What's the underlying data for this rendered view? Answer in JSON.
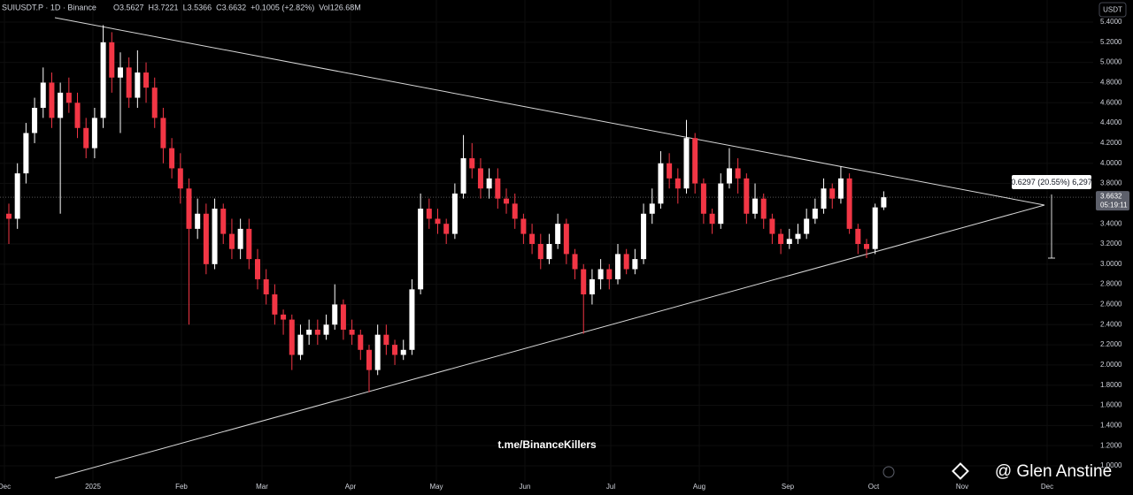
{
  "chart_data": {
    "type": "candlestick",
    "symbol": "SUIUSDT.P · 1D · Binance",
    "header_values": [
      "O3.5627",
      "H3.7221",
      "L3.5366",
      "C3.6632",
      "+0.1005 (+2.82%)",
      "Vol126.68M"
    ],
    "currency": "USDT",
    "last_price": {
      "value": 3.6632,
      "label": "3.6632"
    },
    "countdown": "05:19:11",
    "measure_label": "0.6297 (20.55%) 6,297",
    "watermark": "t.me/BinanceKillers",
    "author": "@ Glen Anstine",
    "xticks": [
      "Dec",
      "2025",
      "Feb",
      "Mar",
      "Apr",
      "May",
      "Jun",
      "Jul",
      "Aug",
      "Sep",
      "Oct",
      "Nov",
      "Dec"
    ],
    "ylim": [
      1.0,
      5.4
    ],
    "yticks": [
      {
        "value": 1.0,
        "label": "1.0000"
      },
      {
        "value": 1.2,
        "label": "1.2000"
      },
      {
        "value": 1.4,
        "label": "1.4000"
      },
      {
        "value": 1.6,
        "label": "1.6000"
      },
      {
        "value": 1.8,
        "label": "1.8000"
      },
      {
        "value": 2.0,
        "label": "2.0000"
      },
      {
        "value": 2.2,
        "label": "2.2000"
      },
      {
        "value": 2.4,
        "label": "2.4000"
      },
      {
        "value": 2.6,
        "label": "2.6000"
      },
      {
        "value": 2.8,
        "label": "2.8000"
      },
      {
        "value": 3.0,
        "label": "3.0000"
      },
      {
        "value": 3.2,
        "label": "3.2000"
      },
      {
        "value": 3.4,
        "label": "3.4000"
      },
      {
        "value": 3.8,
        "label": "3.8000"
      },
      {
        "value": 4.0,
        "label": "4.0000"
      },
      {
        "value": 4.2,
        "label": "4.2000"
      },
      {
        "value": 4.4,
        "label": "4.4000"
      },
      {
        "value": 4.6,
        "label": "4.6000"
      },
      {
        "value": 4.8,
        "label": "4.8000"
      },
      {
        "value": 5.0,
        "label": "5.0000"
      },
      {
        "value": 5.2,
        "label": "5.2000"
      },
      {
        "value": 5.4,
        "label": "5.4000"
      }
    ],
    "up_color": "#ffffff",
    "down_color": "#f23645",
    "open": [
      3.5,
      3.45,
      3.9,
      4.3,
      4.55,
      4.8,
      4.45,
      4.7,
      4.6,
      4.35,
      4.15,
      4.45,
      5.2,
      4.85,
      4.95,
      4.65,
      4.9,
      4.75,
      4.45,
      4.15,
      3.95,
      3.75,
      3.35,
      3.5,
      3.0,
      3.55,
      3.3,
      3.15,
      3.35,
      3.05,
      2.85,
      2.7,
      2.5,
      2.45,
      2.1,
      2.3,
      2.35,
      2.3,
      2.4,
      2.6,
      2.35,
      2.3,
      2.15,
      1.95,
      2.3,
      2.2,
      2.1,
      2.15,
      2.75,
      3.55,
      3.45,
      3.4,
      3.3,
      3.7,
      4.05,
      3.95,
      3.75,
      3.85,
      3.65,
      3.6,
      3.45,
      3.3,
      3.2,
      3.05,
      3.2,
      3.4,
      3.1,
      2.95,
      2.7,
      2.85,
      2.95,
      2.85,
      3.1,
      2.95,
      3.05,
      3.5,
      3.6,
      4.0,
      3.85,
      3.75,
      4.25,
      3.8,
      3.5,
      3.4,
      3.8,
      3.95,
      3.85,
      3.5,
      3.65,
      3.45,
      3.3,
      3.2,
      3.25,
      3.3,
      3.45,
      3.55,
      3.75,
      3.65,
      3.85,
      3.35,
      3.2,
      3.15,
      3.5627
    ],
    "high": [
      3.6,
      4.0,
      4.4,
      4.65,
      4.95,
      4.9,
      4.8,
      4.85,
      4.7,
      4.45,
      4.55,
      5.37,
      5.3,
      5.1,
      5.05,
      5.12,
      5.0,
      4.85,
      4.55,
      4.25,
      4.1,
      3.85,
      3.65,
      3.6,
      3.65,
      3.6,
      3.45,
      3.45,
      3.45,
      3.15,
      2.95,
      2.8,
      2.55,
      2.5,
      2.4,
      2.45,
      2.45,
      2.5,
      2.8,
      2.65,
      2.45,
      2.35,
      2.2,
      2.4,
      2.4,
      2.25,
      2.25,
      2.85,
      3.7,
      3.65,
      3.55,
      3.45,
      3.8,
      4.28,
      4.2,
      4.05,
      3.95,
      3.95,
      3.75,
      3.7,
      3.5,
      3.4,
      3.3,
      3.3,
      3.5,
      3.45,
      3.15,
      3.0,
      2.95,
      3.05,
      3.0,
      3.2,
      3.15,
      3.15,
      3.6,
      3.75,
      4.12,
      4.1,
      3.95,
      4.43,
      4.3,
      3.85,
      3.55,
      3.9,
      4.15,
      4.05,
      3.9,
      3.8,
      3.7,
      3.5,
      3.35,
      3.35,
      3.4,
      3.55,
      3.65,
      3.85,
      3.8,
      3.97,
      3.9,
      3.4,
      3.25,
      3.6,
      3.7221
    ],
    "low": [
      3.2,
      3.35,
      3.8,
      4.2,
      4.45,
      4.35,
      3.5,
      4.5,
      4.25,
      4.05,
      4.05,
      4.35,
      4.7,
      4.3,
      4.55,
      4.55,
      4.6,
      4.35,
      4.0,
      3.85,
      3.6,
      2.4,
      3.25,
      2.9,
      2.95,
      3.2,
      3.05,
      3.05,
      2.95,
      2.75,
      2.6,
      2.4,
      2.3,
      1.95,
      2.05,
      2.2,
      2.2,
      2.25,
      2.35,
      2.25,
      2.2,
      2.05,
      1.73,
      1.9,
      2.1,
      2.0,
      2.05,
      2.1,
      2.7,
      3.35,
      3.3,
      3.2,
      3.25,
      3.65,
      3.85,
      3.65,
      3.65,
      3.55,
      3.5,
      3.35,
      3.2,
      3.1,
      2.95,
      3.0,
      3.15,
      3.0,
      2.85,
      2.31,
      2.6,
      2.75,
      2.75,
      2.8,
      2.9,
      2.9,
      3.0,
      3.4,
      3.55,
      3.75,
      3.6,
      3.7,
      3.7,
      3.4,
      3.3,
      3.35,
      3.75,
      3.7,
      3.4,
      3.45,
      3.35,
      3.2,
      3.1,
      3.15,
      3.2,
      3.25,
      3.4,
      3.5,
      3.55,
      3.6,
      3.3,
      3.1,
      3.06,
      3.1,
      3.5366
    ],
    "close": [
      3.45,
      3.9,
      4.3,
      4.55,
      4.8,
      4.45,
      4.7,
      4.6,
      4.35,
      4.15,
      4.45,
      5.2,
      4.85,
      4.95,
      4.65,
      4.9,
      4.75,
      4.45,
      4.15,
      3.95,
      3.75,
      3.35,
      3.5,
      3.0,
      3.55,
      3.3,
      3.15,
      3.35,
      3.05,
      2.85,
      2.7,
      2.5,
      2.45,
      2.1,
      2.3,
      2.35,
      2.3,
      2.4,
      2.6,
      2.35,
      2.3,
      2.15,
      1.95,
      2.3,
      2.2,
      2.1,
      2.15,
      2.75,
      3.55,
      3.45,
      3.4,
      3.3,
      3.7,
      4.05,
      3.95,
      3.75,
      3.85,
      3.65,
      3.6,
      3.45,
      3.3,
      3.2,
      3.05,
      3.2,
      3.4,
      3.1,
      2.95,
      2.7,
      2.85,
      2.95,
      2.85,
      3.1,
      2.95,
      3.05,
      3.5,
      3.6,
      4.0,
      3.85,
      3.75,
      4.25,
      3.8,
      3.5,
      3.4,
      3.8,
      3.95,
      3.85,
      3.5,
      3.65,
      3.45,
      3.3,
      3.2,
      3.25,
      3.3,
      3.45,
      3.55,
      3.75,
      3.65,
      3.85,
      3.35,
      3.2,
      3.15,
      3.5627,
      3.6632
    ]
  }
}
